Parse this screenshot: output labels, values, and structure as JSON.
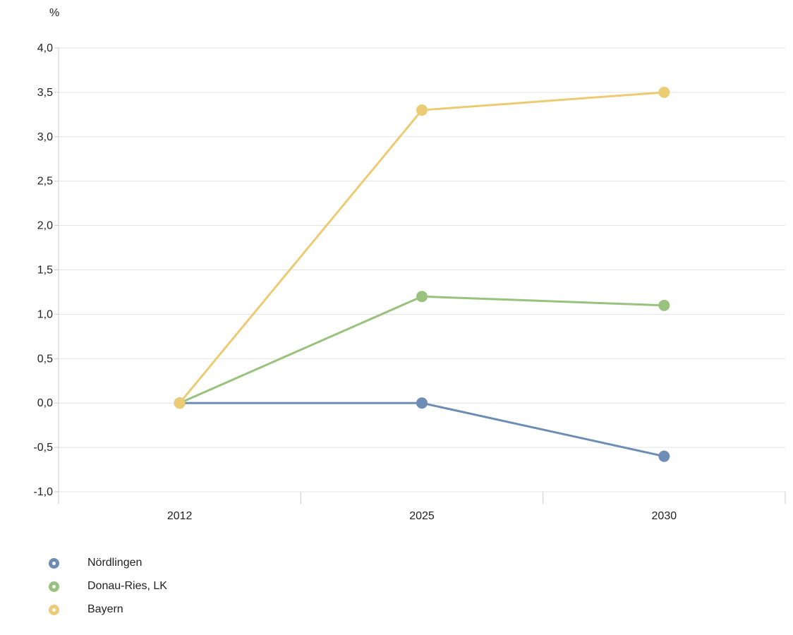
{
  "chart_data": {
    "type": "line",
    "unit_label": "%",
    "categories": [
      "2012",
      "2025",
      "2030"
    ],
    "y_ticks": [
      "4,0",
      "3,5",
      "3,0",
      "2,5",
      "2,0",
      "1,5",
      "1,0",
      "0,5",
      "0,0",
      "-0,5",
      "-1,0"
    ],
    "y_tick_values": [
      4.0,
      3.5,
      3.0,
      2.5,
      2.0,
      1.5,
      1.0,
      0.5,
      0.0,
      -0.5,
      -1.0
    ],
    "ylim": [
      -1.0,
      4.0
    ],
    "grid": true,
    "legend_position": "bottom-left",
    "series": [
      {
        "name": "Nördlingen",
        "values": [
          0.0,
          0.0,
          -0.6
        ],
        "color": "#6e8db5"
      },
      {
        "name": "Donau-Ries, LK",
        "values": [
          0.0,
          1.2,
          1.1
        ],
        "color": "#98c27d"
      },
      {
        "name": "Bayern",
        "values": [
          0.0,
          3.3,
          3.5
        ],
        "color": "#ebcb74"
      }
    ]
  }
}
